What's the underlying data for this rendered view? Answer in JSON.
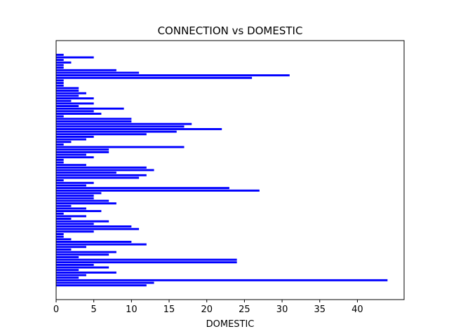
{
  "chart_data": {
    "type": "barh",
    "title": "CONNECTION vs DOMESTIC",
    "xlabel": "DOMESTIC",
    "color": "#0000ff",
    "categories": [
      null,
      null,
      null,
      null,
      null,
      null,
      null,
      null,
      null,
      null,
      null,
      null,
      null,
      null,
      null,
      null,
      null,
      null,
      null,
      null,
      null,
      null,
      null,
      null,
      null,
      null,
      null,
      null,
      null,
      null,
      null,
      null,
      null,
      null,
      null,
      null,
      null,
      null,
      null,
      null,
      null,
      null,
      null,
      null,
      null,
      null,
      null,
      null,
      null,
      null,
      null,
      null,
      null,
      null,
      null,
      null,
      null,
      null,
      null,
      null,
      null,
      null,
      null,
      null,
      null,
      null,
      null,
      null,
      null,
      null,
      null,
      null,
      null,
      null,
      null,
      null,
      null,
      null,
      null,
      null,
      null,
      null,
      null,
      null,
      null,
      null,
      null,
      null,
      null,
      null,
      null
    ],
    "values": [
      1,
      5,
      1,
      2,
      1,
      1,
      8,
      11,
      31,
      26,
      1,
      1,
      1,
      3,
      3,
      4,
      3,
      5,
      2,
      5,
      3,
      9,
      5,
      6,
      1,
      10,
      10,
      18,
      17,
      22,
      16,
      12,
      5,
      4,
      2,
      1,
      17,
      7,
      7,
      4,
      5,
      1,
      1,
      4,
      12,
      13,
      8,
      12,
      11,
      1,
      5,
      4,
      23,
      27,
      6,
      5,
      5,
      7,
      8,
      2,
      4,
      6,
      1,
      4,
      2,
      7,
      5,
      10,
      11,
      5,
      1,
      1,
      2,
      10,
      12,
      4,
      2,
      8,
      7,
      3,
      24,
      24,
      5,
      7,
      3,
      8,
      4,
      3,
      44,
      13,
      12
    ],
    "xlim": [
      0,
      46.2
    ],
    "xticks": [
      0,
      5,
      10,
      15,
      20,
      25,
      30,
      35,
      40
    ]
  }
}
